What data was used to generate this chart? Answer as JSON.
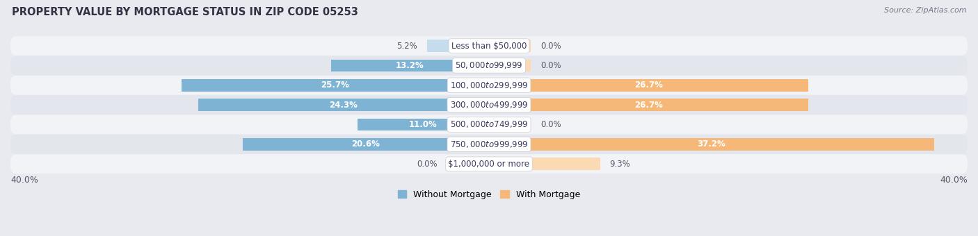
{
  "title": "PROPERTY VALUE BY MORTGAGE STATUS IN ZIP CODE 05253",
  "source": "Source: ZipAtlas.com",
  "categories": [
    "Less than $50,000",
    "$50,000 to $99,999",
    "$100,000 to $299,999",
    "$300,000 to $499,999",
    "$500,000 to $749,999",
    "$750,000 to $999,999",
    "$1,000,000 or more"
  ],
  "without_mortgage": [
    5.2,
    13.2,
    25.7,
    24.3,
    11.0,
    20.6,
    0.0
  ],
  "with_mortgage": [
    0.0,
    0.0,
    26.7,
    26.7,
    0.0,
    37.2,
    9.3
  ],
  "color_without": "#7fb3d3",
  "color_with": "#f5b878",
  "color_without_pale": "#c5dced",
  "color_with_pale": "#fad9b3",
  "xlim": 40.0,
  "small_bar_width": 3.5,
  "axis_label_left": "40.0%",
  "axis_label_right": "40.0%",
  "bar_height": 0.62,
  "bg_color": "#e8eaf0",
  "row_bg_even": "#f2f3f7",
  "row_bg_odd": "#e4e6ed",
  "title_fontsize": 10.5,
  "source_fontsize": 8,
  "value_fontsize": 8.5,
  "category_fontsize": 8.5,
  "axis_tick_fontsize": 9,
  "legend_label_without": "Without Mortgage",
  "legend_label_with": "With Mortgage"
}
